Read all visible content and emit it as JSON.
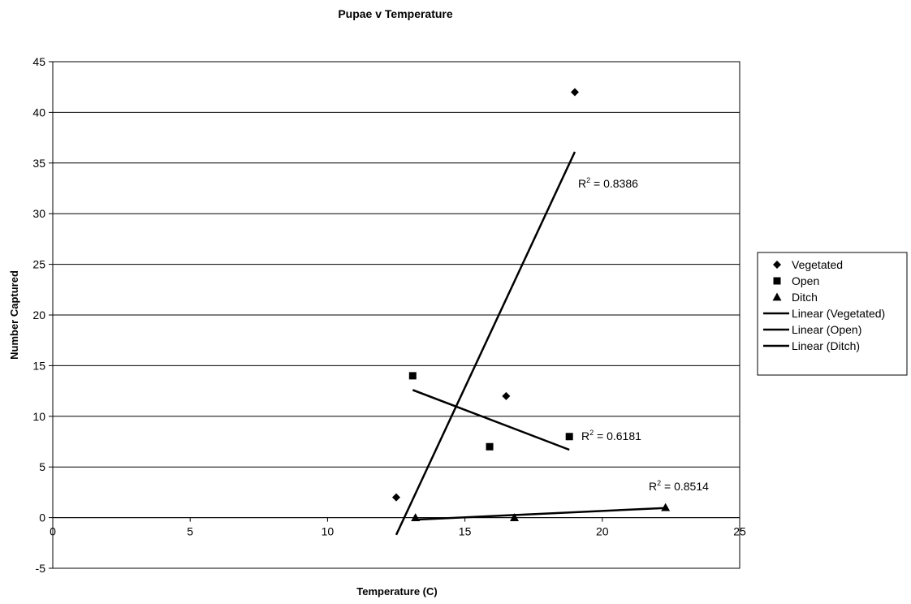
{
  "chart_data": {
    "type": "scatter",
    "title": "Pupae v Temperature",
    "xlabel": "Temperature (C)",
    "ylabel": "Number Captured",
    "xlim": [
      0,
      25
    ],
    "ylim": [
      -5,
      45
    ],
    "x_ticks": [
      0,
      5,
      10,
      15,
      20,
      25
    ],
    "y_ticks": [
      -5,
      0,
      5,
      10,
      15,
      20,
      25,
      30,
      35,
      40,
      45
    ],
    "grid": "horizontal",
    "legend_position": "right",
    "series": [
      {
        "name": "Vegetated",
        "marker": "diamond",
        "points": [
          [
            12.5,
            2
          ],
          [
            16.5,
            12
          ],
          [
            19.0,
            42
          ]
        ]
      },
      {
        "name": "Open",
        "marker": "square",
        "points": [
          [
            13.1,
            14
          ],
          [
            15.9,
            7
          ],
          [
            18.8,
            8
          ]
        ]
      },
      {
        "name": "Ditch",
        "marker": "triangle",
        "points": [
          [
            13.2,
            0
          ],
          [
            16.8,
            0
          ],
          [
            22.3,
            1
          ]
        ]
      }
    ],
    "trendlines": [
      {
        "name": "Linear (Vegetated)",
        "x_range": [
          12.5,
          19.0
        ],
        "y_range": [
          -1.7,
          36.1
        ],
        "r_squared": "0.8386"
      },
      {
        "name": "Linear (Open)",
        "x_range": [
          13.1,
          18.8
        ],
        "y_range": [
          12.6,
          6.7
        ],
        "r_squared": "0.6181"
      },
      {
        "name": "Linear (Ditch)",
        "x_range": [
          13.2,
          22.3
        ],
        "y_range": [
          -0.2,
          0.95
        ],
        "r_squared": "0.8514"
      }
    ],
    "colors": {
      "marker": "#000000",
      "line": "#000000",
      "grid": "#000000",
      "background": "#ffffff"
    }
  }
}
